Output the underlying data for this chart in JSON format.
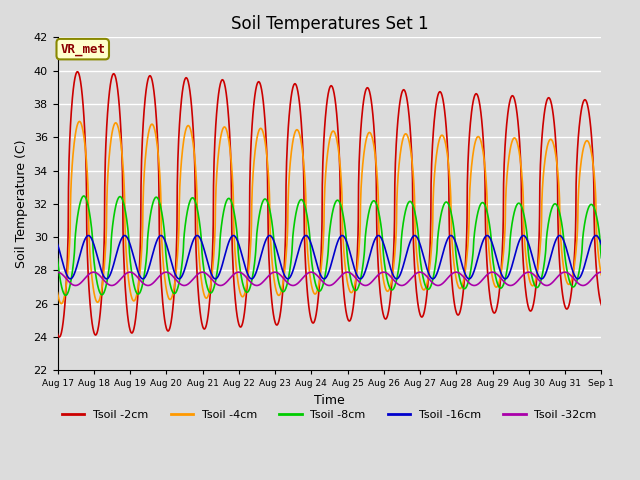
{
  "title": "Soil Temperatures Set 1",
  "xlabel": "Time",
  "ylabel": "Soil Temperature (C)",
  "ylim": [
    22,
    42
  ],
  "yticks": [
    22,
    24,
    26,
    28,
    30,
    32,
    34,
    36,
    38,
    40,
    42
  ],
  "background_color": "#dcdcdc",
  "plot_bg_color": "#dcdcdc",
  "grid_color": "white",
  "series": [
    {
      "label": "Tsoil -2cm",
      "color": "#cc0000",
      "lw": 1.2
    },
    {
      "label": "Tsoil -4cm",
      "color": "#ff9900",
      "lw": 1.2
    },
    {
      "label": "Tsoil -8cm",
      "color": "#00cc00",
      "lw": 1.2
    },
    {
      "label": "Tsoil -16cm",
      "color": "#0000cc",
      "lw": 1.2
    },
    {
      "label": "Tsoil -32cm",
      "color": "#aa00aa",
      "lw": 1.2
    }
  ],
  "annotation_text": "VR_met",
  "n_days": 15.5,
  "start_day": 17,
  "title_fontsize": 12,
  "figwidth": 6.4,
  "figheight": 4.8,
  "dpi": 100
}
